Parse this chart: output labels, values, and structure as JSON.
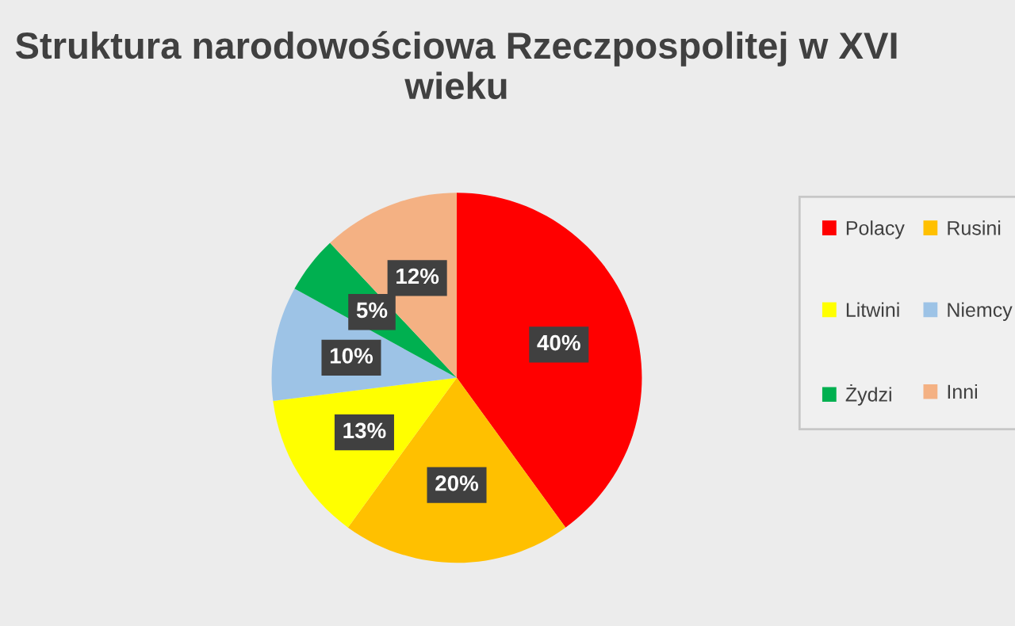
{
  "chart_data": {
    "type": "pie",
    "title": "Struktura narodowościowa Rzeczpospolitej w XVI wieku",
    "categories": [
      "Polacy",
      "Rusini",
      "Litwini",
      "Niemcy",
      "Żydzi",
      "Inni"
    ],
    "values": [
      40,
      20,
      13,
      10,
      5,
      12
    ],
    "value_labels": [
      "40%",
      "20%",
      "13%",
      "10%",
      "5%",
      "12%"
    ],
    "colors": [
      "#ff0000",
      "#ffc000",
      "#ffff00",
      "#9dc3e6",
      "#00b050",
      "#f4b183"
    ],
    "legend": "right"
  }
}
